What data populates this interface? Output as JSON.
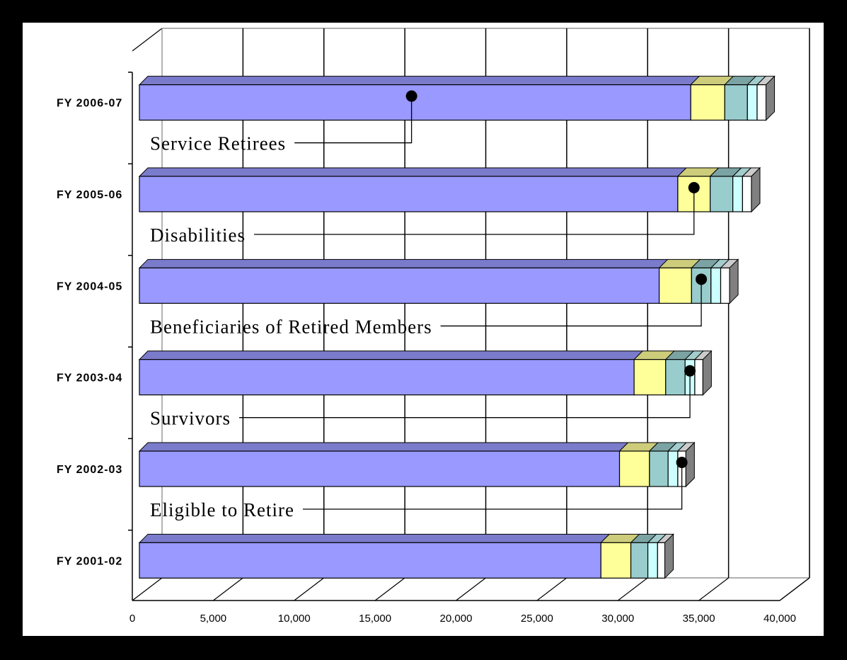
{
  "colors": {
    "frame_border": "#000000",
    "background": "#ffffff",
    "segments": [
      "#9999ff",
      "#ffff99",
      "#99cccc",
      "#ccffff",
      "#ffffff"
    ],
    "segment_tops": [
      "#7b7bcc",
      "#cccc7b",
      "#7ba3a3",
      "#a3cccc",
      "#cccccc"
    ],
    "bar_end_side": "#808080",
    "grid": "#000000",
    "marker": "#000000"
  },
  "chart_data": {
    "type": "bar",
    "orientation": "horizontal",
    "stacked": true,
    "three_d": true,
    "grid": true,
    "xlim": [
      0,
      40000
    ],
    "x_ticks": [
      "0",
      "5,000",
      "10,000",
      "15,000",
      "20,000",
      "25,000",
      "30,000",
      "35,000",
      "40,000"
    ],
    "x_tick_values": [
      0,
      5000,
      10000,
      15000,
      20000,
      25000,
      30000,
      35000,
      40000
    ],
    "categories": [
      "FY 2006-07",
      "FY 2005-06",
      "FY 2004-05",
      "FY 2003-04",
      "FY 2002-03",
      "FY 2001-02"
    ],
    "series": [
      {
        "values": [
          34500,
          33700,
          32550,
          31000,
          30100,
          28950
        ]
      },
      {
        "values": [
          2100,
          2000,
          2000,
          1950,
          1850,
          1850
        ]
      },
      {
        "values": [
          1400,
          1400,
          1200,
          1200,
          1150,
          1050
        ]
      },
      {
        "values": [
          600,
          600,
          600,
          600,
          600,
          600
        ]
      },
      {
        "values": [
          550,
          550,
          550,
          500,
          500,
          450
        ]
      }
    ],
    "annotations": [
      {
        "text": "Service Retirees"
      },
      {
        "text": "Disabilities"
      },
      {
        "text": "Beneficiaries of Retired Members"
      },
      {
        "text": "Survivors"
      },
      {
        "text": "Eligible to Retire"
      }
    ]
  }
}
